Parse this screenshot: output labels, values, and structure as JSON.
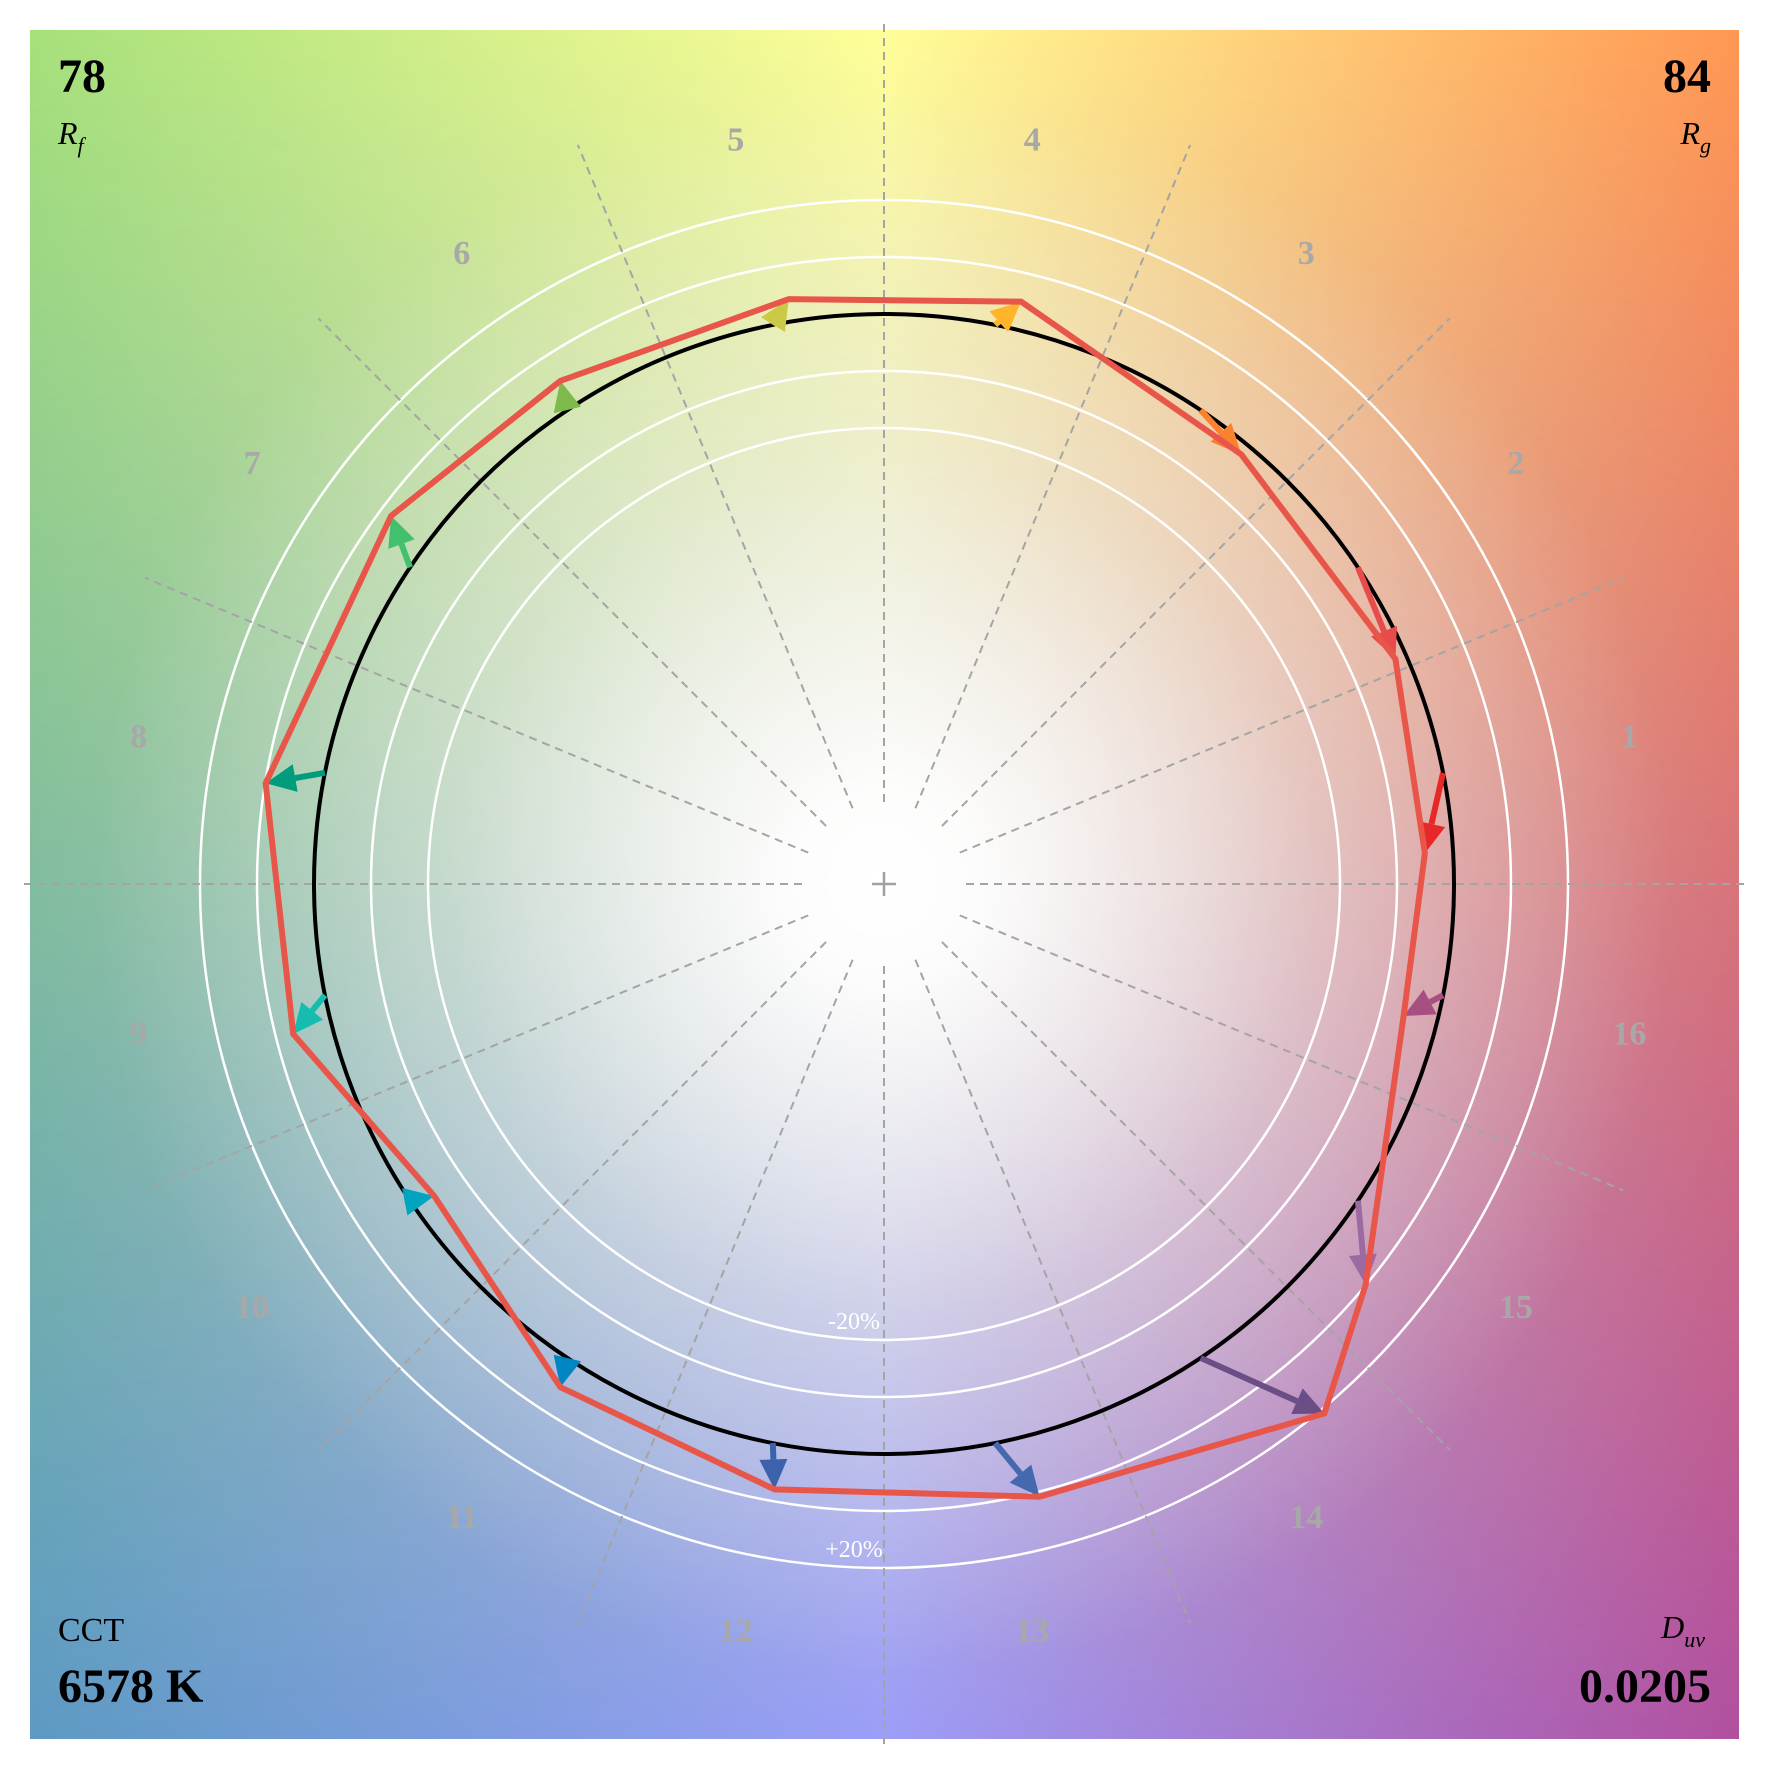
{
  "metrics": {
    "rf_value": "78",
    "rf_label": "R",
    "rf_sub": "f",
    "rg_value": "84",
    "rg_label": "R",
    "rg_sub": "g",
    "cct_label": "CCT",
    "cct_value": "6578 K",
    "duv_label": "D",
    "duv_sub": "uv",
    "duv_value": "0.0205"
  },
  "chart_data": {
    "type": "polar-vector",
    "bins": [
      "1",
      "2",
      "3",
      "4",
      "5",
      "6",
      "7",
      "8",
      "9",
      "10",
      "11",
      "12",
      "13",
      "14",
      "15",
      "16"
    ],
    "ring_labels": [
      "-20%",
      "+20%"
    ],
    "ring_offsets_percent": [
      -20,
      -10,
      0,
      10,
      20
    ],
    "reference_radius_percent": 0,
    "test_chroma_percent": [
      -5,
      -2,
      -2,
      5,
      4,
      5,
      8,
      10,
      7,
      -4,
      5,
      8,
      11,
      21,
      10,
      -6
    ],
    "test_hue_shift_deg": [
      -8,
      -10,
      -6,
      -2,
      -2,
      -1,
      -3,
      2,
      3,
      1,
      1,
      1,
      3,
      6,
      -6,
      -3
    ],
    "arrow_colors": [
      "#e62828",
      "#e74b4b",
      "#fb812e",
      "#ffb529",
      "#cbca46",
      "#7eb94c",
      "#41c06d",
      "#009c7c",
      "#16bcb0",
      "#00a4bf",
      "#0085c3",
      "#3b62aa",
      "#4568ae",
      "#6a4e85",
      "#9d69a1",
      "#a74f81"
    ],
    "polygon_color": "#e8564a",
    "background_colors": {
      "top_left": "#a6e07a",
      "top_right": "#ff9752",
      "bottom_left": "#5d9ac4",
      "bottom_right": "#b250a0",
      "top_center": "#fffe98",
      "bottom_center": "#9c9ef8"
    }
  }
}
